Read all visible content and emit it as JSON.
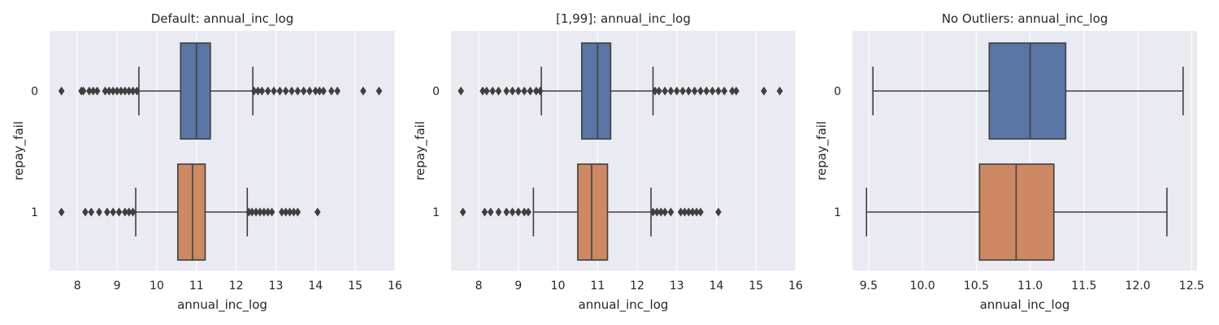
{
  "chart_data": [
    {
      "type": "boxplot",
      "title": "Default: annual_inc_log",
      "xlabel": "annual_inc_log",
      "ylabel": "repay_fail",
      "xlim": [
        7.3,
        16.0
      ],
      "xticks": [
        8,
        9,
        10,
        11,
        12,
        13,
        14,
        15,
        16
      ],
      "categories": [
        "0",
        "1"
      ],
      "series": [
        {
          "category": "0",
          "color": "#5875a4",
          "whisker_low": 9.55,
          "q1": 10.6,
          "median": 11.0,
          "q3": 11.35,
          "whisker_high": 12.42,
          "outliers": [
            7.6,
            8.1,
            8.15,
            8.3,
            8.4,
            8.5,
            8.7,
            8.8,
            8.9,
            9.0,
            9.1,
            9.2,
            9.3,
            9.4,
            9.5,
            12.45,
            12.55,
            12.65,
            12.8,
            12.95,
            13.1,
            13.25,
            13.4,
            13.55,
            13.7,
            13.85,
            14.0,
            14.1,
            14.2,
            14.4,
            14.55,
            15.2,
            15.6
          ]
        },
        {
          "category": "1",
          "color": "#cc8963",
          "whisker_low": 9.47,
          "q1": 10.53,
          "median": 10.9,
          "q3": 11.22,
          "whisker_high": 12.28,
          "outliers": [
            7.6,
            8.2,
            8.35,
            8.55,
            8.75,
            8.9,
            9.05,
            9.2,
            9.3,
            9.4,
            12.32,
            12.4,
            12.5,
            12.6,
            12.7,
            12.8,
            12.9,
            13.15,
            13.25,
            13.35,
            13.45,
            13.55,
            14.05
          ]
        }
      ]
    },
    {
      "type": "boxplot",
      "title": "[1,99]: annual_inc_log",
      "xlabel": "annual_inc_log",
      "ylabel": "repay_fail",
      "xlim": [
        7.3,
        16.0
      ],
      "xticks": [
        8,
        9,
        10,
        11,
        12,
        13,
        14,
        15,
        16
      ],
      "categories": [
        "0",
        "1"
      ],
      "series": [
        {
          "category": "0",
          "color": "#5875a4",
          "whisker_low": 9.58,
          "q1": 10.6,
          "median": 11.0,
          "q3": 11.33,
          "whisker_high": 12.4,
          "outliers": [
            7.55,
            8.1,
            8.2,
            8.35,
            8.5,
            8.7,
            8.85,
            9.0,
            9.15,
            9.3,
            9.45,
            9.55,
            12.45,
            12.55,
            12.7,
            12.85,
            13.0,
            13.15,
            13.3,
            13.45,
            13.6,
            13.75,
            13.9,
            14.05,
            14.2,
            14.4,
            14.5,
            15.2,
            15.6
          ]
        },
        {
          "category": "1",
          "color": "#cc8963",
          "whisker_low": 9.38,
          "q1": 10.5,
          "median": 10.85,
          "q3": 11.25,
          "whisker_high": 12.35,
          "outliers": [
            7.6,
            8.15,
            8.3,
            8.5,
            8.7,
            8.85,
            9.0,
            9.15,
            9.25,
            12.4,
            12.5,
            12.6,
            12.7,
            12.85,
            13.1,
            13.2,
            13.3,
            13.4,
            13.5,
            13.6,
            14.05
          ]
        }
      ]
    },
    {
      "type": "boxplot",
      "title": "No Outliers: annual_inc_log",
      "xlabel": "annual_inc_log",
      "ylabel": "repay_fail",
      "xlim": [
        9.35,
        12.55
      ],
      "xticks": [
        9.5,
        10.0,
        10.5,
        11.0,
        11.5,
        12.0,
        12.5
      ],
      "xtick_labels": [
        "9.5",
        "10.0",
        "10.5",
        "11.0",
        "11.5",
        "12.0",
        "12.5"
      ],
      "categories": [
        "0",
        "1"
      ],
      "series": [
        {
          "category": "0",
          "color": "#5875a4",
          "whisker_low": 9.54,
          "q1": 10.62,
          "median": 11.0,
          "q3": 11.33,
          "whisker_high": 12.42,
          "outliers": []
        },
        {
          "category": "1",
          "color": "#cc8963",
          "whisker_low": 9.48,
          "q1": 10.53,
          "median": 10.87,
          "q3": 11.22,
          "whisker_high": 12.27,
          "outliers": []
        }
      ]
    }
  ]
}
